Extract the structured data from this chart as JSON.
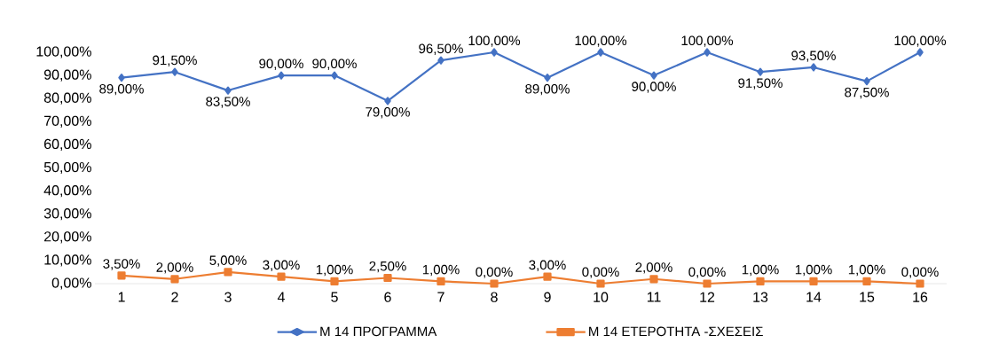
{
  "chart_data": {
    "type": "line",
    "categories": [
      "1",
      "2",
      "3",
      "4",
      "5",
      "6",
      "7",
      "8",
      "9",
      "10",
      "11",
      "12",
      "13",
      "14",
      "15",
      "16"
    ],
    "series": [
      {
        "name": "Μ 14 ΠΡΟΓΡΑΜΜΑ",
        "color": "#4472c4",
        "marker": "diamond",
        "values": [
          89,
          91.5,
          83.5,
          90,
          90,
          79,
          96.5,
          100,
          89,
          100,
          90,
          100,
          91.5,
          93.5,
          87.5,
          100
        ],
        "value_labels": [
          "89,00%",
          "91,50%",
          "83,50%",
          "90,00%",
          "90,00%",
          "79,00%",
          "96,50%",
          "100,00%",
          "89,00%",
          "100,00%",
          "90,00%",
          "100,00%",
          "91,50%",
          "93,50%",
          "87,50%",
          "100,00%"
        ]
      },
      {
        "name": "Μ 14 ΕΤΕΡΟΤΗΤΑ -ΣΧΕΣΕΙΣ",
        "color": "#ed7d31",
        "marker": "square",
        "values": [
          3.5,
          2,
          5,
          3,
          1,
          2.5,
          1,
          0,
          3,
          0,
          2,
          0,
          1,
          1,
          1,
          0
        ],
        "value_labels": [
          "3,50%",
          "2,00%",
          "5,00%",
          "3,00%",
          "1,00%",
          "2,50%",
          "1,00%",
          "0,00%",
          "3,00%",
          "0,00%",
          "2,00%",
          "0,00%",
          "1,00%",
          "1,00%",
          "1,00%",
          "0,00%"
        ]
      }
    ],
    "ylim": [
      0,
      100
    ],
    "yticks": [
      {
        "value": 0,
        "label": "0,00%"
      },
      {
        "value": 10,
        "label": "10,00%"
      },
      {
        "value": 20,
        "label": "20,00%"
      },
      {
        "value": 30,
        "label": "30,00%"
      },
      {
        "value": 40,
        "label": "40,00%"
      },
      {
        "value": 50,
        "label": "50,00%"
      },
      {
        "value": 60,
        "label": "60,00%"
      },
      {
        "value": 70,
        "label": "70,00%"
      },
      {
        "value": 80,
        "label": "80,00%"
      },
      {
        "value": 90,
        "label": "90,00%"
      },
      {
        "value": 100,
        "label": "100,00%"
      }
    ],
    "grid": false,
    "legend": "bottom"
  }
}
